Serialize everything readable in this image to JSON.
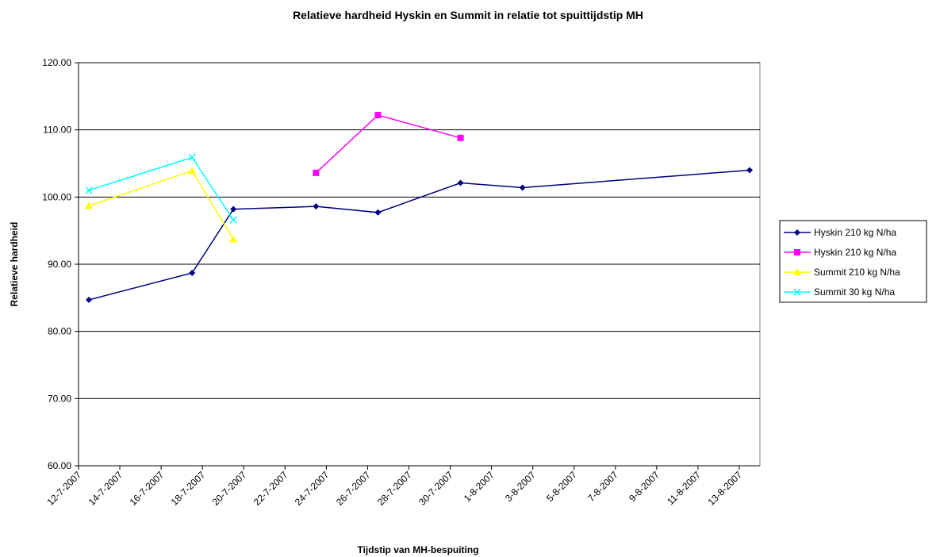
{
  "chart_data": {
    "type": "line",
    "title": "Relatieve hardheid Hyskin en Summit in relatie tot spuittijdstip MH",
    "x_label": "Tijdstip van MH-bespuiting",
    "y_label": "Relatieve hardheid",
    "xlim": [
      "12-7-2007",
      "14-8-2007"
    ],
    "xticks": [
      "12-7-2007",
      "14-7-2007",
      "16-7-2007",
      "18-7-2007",
      "20-7-2007",
      "22-7-2007",
      "24-7-2007",
      "26-7-2007",
      "28-7-2007",
      "30-7-2007",
      "1-8-2007",
      "3-8-2007",
      "5-8-2007",
      "7-8-2007",
      "9-8-2007",
      "11-8-2007",
      "13-8-2007"
    ],
    "ylim": [
      60,
      120
    ],
    "yticks": [
      {
        "value": 60,
        "label": "60.00"
      },
      {
        "value": 70,
        "label": "70.00"
      },
      {
        "value": 80,
        "label": "80.00"
      },
      {
        "value": 90,
        "label": "90.00"
      },
      {
        "value": 100,
        "label": "100.00"
      },
      {
        "value": 110,
        "label": "110.00"
      },
      {
        "value": 120,
        "label": "120.00"
      }
    ],
    "grid": true,
    "legend": "right",
    "series": [
      {
        "name": "Hyskin 210 kg N/ha",
        "color": "#000080",
        "marker": "diamond",
        "x": [
          "12-7-2007",
          "17-7-2007",
          "19-7-2007",
          "23-7-2007",
          "26-7-2007",
          "30-7-2007",
          "2-8-2007",
          "13-8-2007"
        ],
        "values": [
          84.7,
          88.7,
          98.2,
          98.6,
          97.7,
          102.1,
          101.4,
          104.0
        ]
      },
      {
        "name": "Hyskin 210 kg N/ha",
        "color": "#ff00ff",
        "marker": "square",
        "x": [
          "23-7-2007",
          "26-7-2007",
          "30-7-2007"
        ],
        "values": [
          103.6,
          112.2,
          108.8
        ]
      },
      {
        "name": "Summit 210 kg N/ha",
        "color": "#ffff00",
        "marker": "triangle",
        "x": [
          "12-7-2007",
          "17-7-2007",
          "19-7-2007"
        ],
        "values": [
          98.7,
          103.9,
          93.7
        ]
      },
      {
        "name": "Summit 30 kg N/ha",
        "color": "#00ffff",
        "marker": "x",
        "x": [
          "12-7-2007",
          "17-7-2007",
          "19-7-2007"
        ],
        "values": [
          101.0,
          105.9,
          96.6
        ]
      }
    ]
  }
}
